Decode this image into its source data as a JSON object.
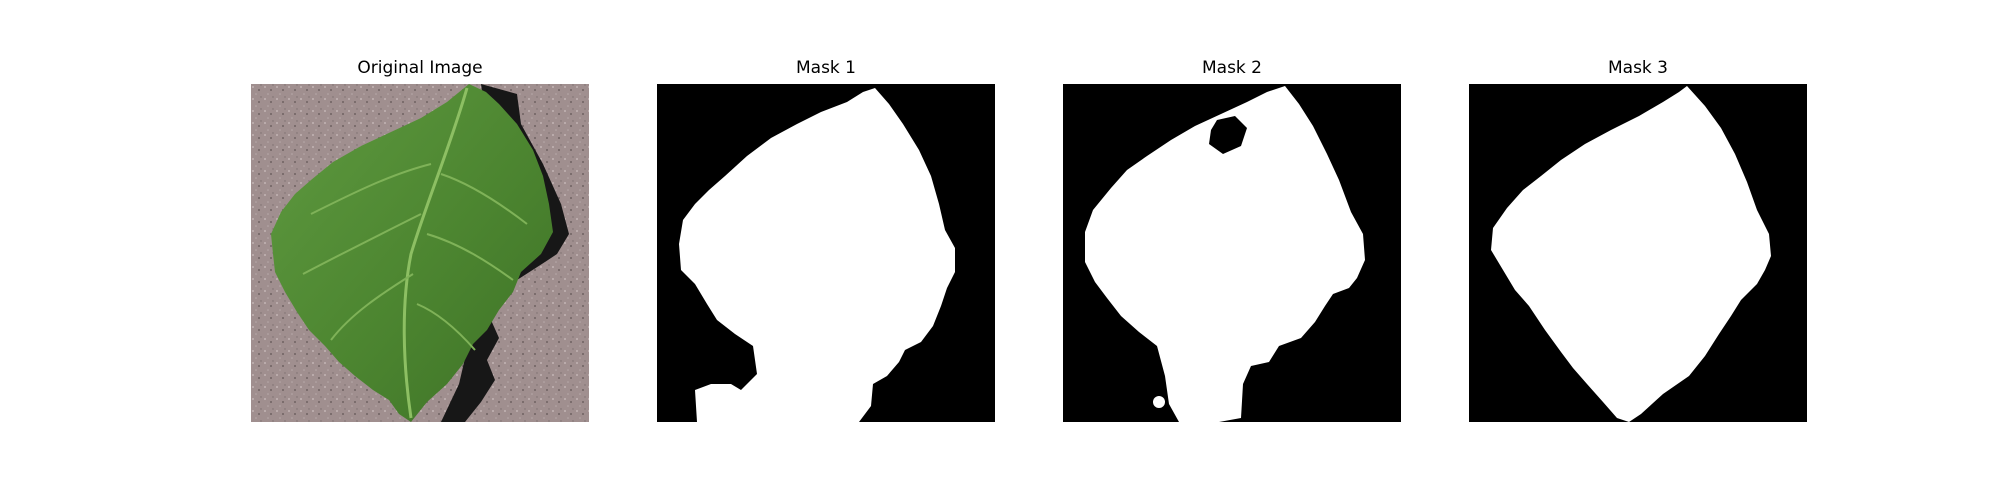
{
  "figure": {
    "panels": [
      {
        "title": "Original Image",
        "kind": "photo",
        "subject": "leaf-photo"
      },
      {
        "title": "Mask 1",
        "kind": "mask",
        "subject": "leaf-mask"
      },
      {
        "title": "Mask 2",
        "kind": "mask",
        "subject": "leaf-mask"
      },
      {
        "title": "Mask 3",
        "kind": "mask",
        "subject": "leaf-mask"
      }
    ],
    "colors": {
      "background": "#ffffff",
      "mask_background": "#000000",
      "mask_foreground": "#ffffff",
      "surface": "#9d8b8b",
      "leaf": "#4f8a34",
      "leaf_vein": "#8dbf63",
      "shadow": "#171717"
    }
  }
}
